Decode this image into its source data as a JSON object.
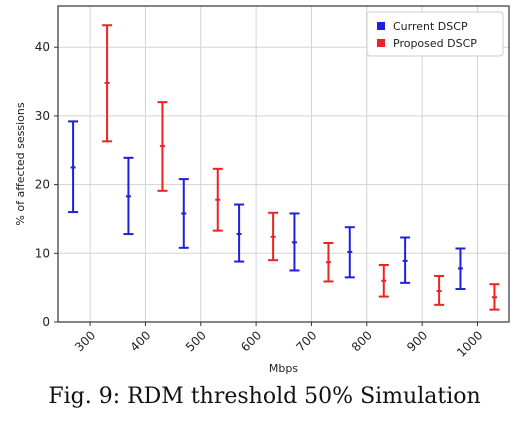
{
  "caption": "Fig. 9: RDM threshold 50% Simulation",
  "chart_data": {
    "type": "errorbar",
    "title": "",
    "xlabel": "Mbps",
    "ylabel": "% of affected sessions",
    "categories": [
      "300",
      "400",
      "500",
      "600",
      "700",
      "800",
      "900",
      "1000"
    ],
    "ylim": [
      0,
      46
    ],
    "yticks": [
      0,
      10,
      20,
      30,
      40
    ],
    "grid": true,
    "legend_position": "top-right",
    "series": [
      {
        "name": "Current DSCP",
        "color": "#1f1fdc",
        "mean": [
          22.5,
          18.3,
          15.8,
          12.8,
          11.6,
          10.2,
          8.9,
          7.8
        ],
        "lower": [
          16.0,
          12.8,
          10.8,
          8.8,
          7.5,
          6.5,
          5.7,
          4.8
        ],
        "upper": [
          29.2,
          23.9,
          20.8,
          17.1,
          15.8,
          13.8,
          12.3,
          10.7
        ]
      },
      {
        "name": "Proposed DSCP",
        "color": "#ee2222",
        "mean": [
          34.8,
          25.6,
          17.8,
          12.4,
          8.7,
          6.0,
          4.5,
          3.6
        ],
        "lower": [
          26.3,
          19.1,
          13.3,
          9.0,
          5.9,
          3.7,
          2.5,
          1.8
        ],
        "upper": [
          43.2,
          32.0,
          22.3,
          15.9,
          11.5,
          8.3,
          6.7,
          5.5
        ]
      }
    ]
  }
}
